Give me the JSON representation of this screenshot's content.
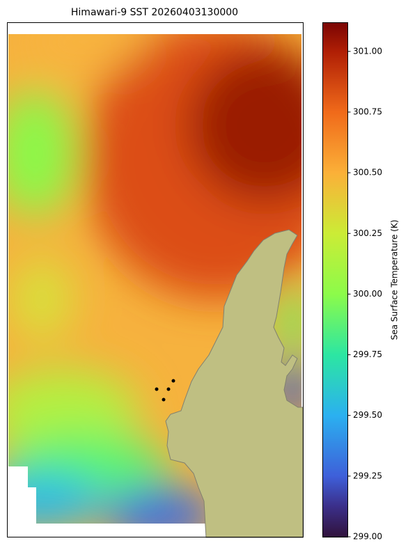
{
  "title": "Himawari-9 SST 20260403130000",
  "colorbar": {
    "label": "Sea Surface Temperature (K)",
    "range": [
      299.0,
      301.12
    ],
    "ticks": [
      {
        "value": 299,
        "label": "299.00"
      },
      {
        "value": 299.25,
        "label": "299.25"
      },
      {
        "value": 299.5,
        "label": "299.50"
      },
      {
        "value": 299.75,
        "label": "299.75"
      },
      {
        "value": 300,
        "label": "300.00"
      },
      {
        "value": 300.25,
        "label": "300.25"
      },
      {
        "value": 300.5,
        "label": "300.50"
      },
      {
        "value": 300.75,
        "label": "300.75"
      },
      {
        "value": 301,
        "label": "301.00"
      }
    ]
  }
}
